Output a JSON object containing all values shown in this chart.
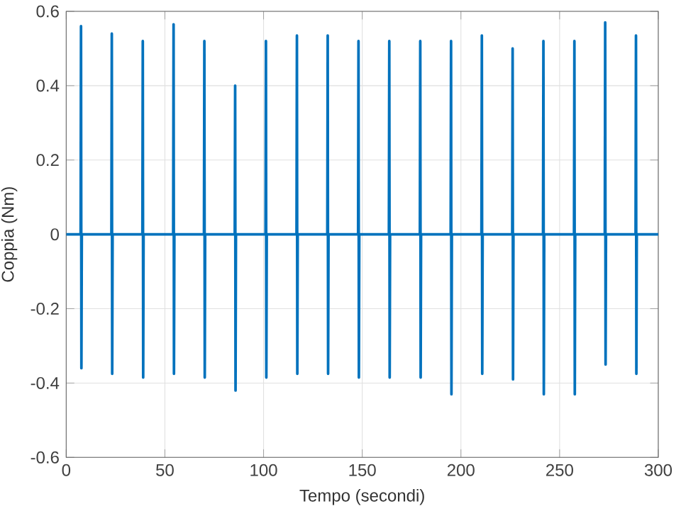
{
  "chart_data": {
    "type": "line",
    "xlabel": "Tempo (secondi)",
    "ylabel": "Coppia (Nm)",
    "xlim": [
      0,
      300
    ],
    "ylim": [
      -0.6,
      0.6
    ],
    "xticks": [
      0,
      50,
      100,
      150,
      200,
      250,
      300
    ],
    "yticks": [
      -0.6,
      -0.4,
      -0.2,
      0,
      0.2,
      0.4,
      0.6
    ],
    "grid": true,
    "series": [
      {
        "color": "#0072bd",
        "x": [
          0,
          7.3,
          7.5,
          7.7,
          7.9,
          22.9,
          23.1,
          23.3,
          23.5,
          38.6,
          38.8,
          39.0,
          39.2,
          54.2,
          54.4,
          54.6,
          54.8,
          69.8,
          70.0,
          70.2,
          70.4,
          85.4,
          85.6,
          85.8,
          86.0,
          101.0,
          101.2,
          101.4,
          101.6,
          116.7,
          116.9,
          117.1,
          117.3,
          132.3,
          132.5,
          132.7,
          132.9,
          147.9,
          148.1,
          148.3,
          148.5,
          163.5,
          163.7,
          163.9,
          164.1,
          179.2,
          179.4,
          179.6,
          179.8,
          194.8,
          195.0,
          195.2,
          195.4,
          210.4,
          210.6,
          210.8,
          211.0,
          226.0,
          226.2,
          226.4,
          226.6,
          241.6,
          241.8,
          242.0,
          242.2,
          257.3,
          257.5,
          257.7,
          257.9,
          272.9,
          273.1,
          273.3,
          273.5,
          288.5,
          288.7,
          288.9,
          289.1,
          300
        ],
        "values": [
          0,
          0,
          0.56,
          -0.36,
          0,
          0,
          0.54,
          -0.375,
          0,
          0,
          0.52,
          -0.385,
          0,
          0,
          0.565,
          -0.375,
          0,
          0,
          0.52,
          -0.385,
          0,
          0,
          0.4,
          -0.42,
          0,
          0,
          0.52,
          -0.385,
          0,
          0,
          0.535,
          -0.375,
          0,
          0,
          0.535,
          -0.375,
          0,
          0,
          0.52,
          -0.385,
          0,
          0,
          0.52,
          -0.385,
          0,
          0,
          0.52,
          -0.385,
          0,
          0,
          0.52,
          -0.43,
          0,
          0,
          0.535,
          -0.375,
          0,
          0,
          0.5,
          -0.39,
          0,
          0,
          0.52,
          -0.43,
          0,
          0,
          0.52,
          -0.43,
          0,
          0,
          0.57,
          -0.35,
          0,
          0,
          0.535,
          -0.375,
          0,
          0
        ]
      }
    ]
  }
}
